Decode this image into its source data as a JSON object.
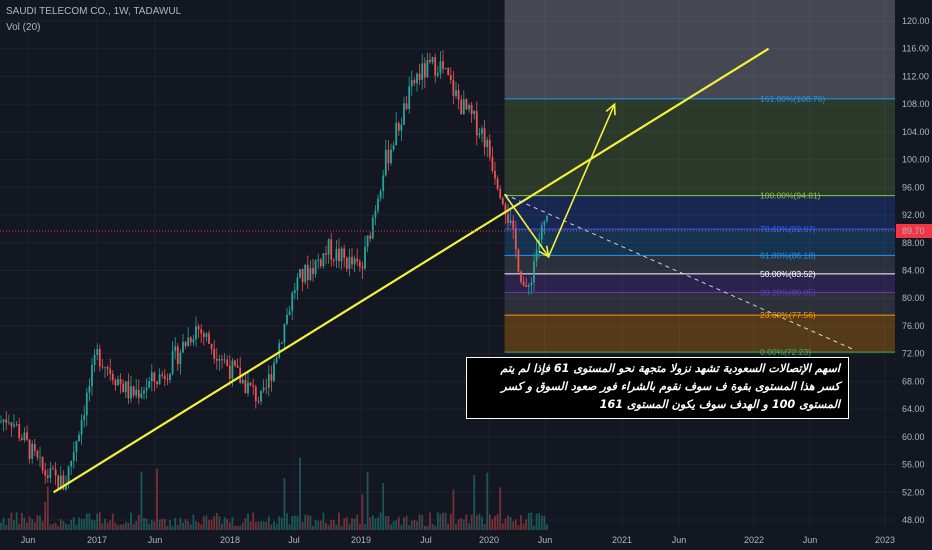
{
  "header": {
    "symbol_line": "SAUDI TELECOM CO., 1W, TADAWUL",
    "indicator": "Vol (20)"
  },
  "colors": {
    "background": "#131722",
    "grid": "#1e222d",
    "up": "#26a69a",
    "down": "#ef5350",
    "trendline": "#f2f23a",
    "price_line": "#f23645",
    "axis_text": "#b2b5be"
  },
  "annotation": {
    "lines": [
      "اسهم الإتصالات السعودية تشهد نزولا متجهة نحو المستوى 61 فإذا لم يتم",
      "كسر هذا المستوى بقوة ف سوف نقوم بالشراء فور صعود السوق و كسر",
      "المستوى 100 و الهدف سوف يكون المستوى 161"
    ]
  },
  "chart_data": {
    "type": "candlestick",
    "title": "SAUDI TELECOM CO., 1W, TADAWUL",
    "xlabel": "",
    "ylabel": "",
    "ylim": [
      47,
      122
    ],
    "x_ticks": [
      "Jun",
      "2017",
      "Jun",
      "2018",
      "Jul",
      "2019",
      "Jul",
      "2020",
      "Jun",
      "2021",
      "Jun",
      "2022",
      "Jun",
      "2023"
    ],
    "y_ticks": [
      48.0,
      52.0,
      56.0,
      60.0,
      64.0,
      68.0,
      72.0,
      76.0,
      80.0,
      84.0,
      88.0,
      92.0,
      96.0,
      100.0,
      104.0,
      108.0,
      112.0,
      116.0,
      120.0
    ],
    "last_price": 89.7,
    "price_path": [
      [
        "2016-01",
        60
      ],
      [
        "2016-04",
        63
      ],
      [
        "2016-07",
        55
      ],
      [
        "2016-09",
        53
      ],
      [
        "2016-12",
        72
      ],
      [
        "2017-03",
        66
      ],
      [
        "2017-06",
        69
      ],
      [
        "2017-09",
        76
      ],
      [
        "2017-12",
        70
      ],
      [
        "2018-03",
        65
      ],
      [
        "2018-06",
        82
      ],
      [
        "2018-09",
        87
      ],
      [
        "2018-12",
        84
      ],
      [
        "2019-02",
        99
      ],
      [
        "2019-05",
        112
      ],
      [
        "2019-07",
        114
      ],
      [
        "2019-09",
        108
      ],
      [
        "2019-11",
        104
      ],
      [
        "2020-01",
        94
      ],
      [
        "2020-03",
        80
      ],
      [
        "2020-04",
        88
      ],
      [
        "2020-05",
        92
      ]
    ],
    "trendline": [
      [
        "2016-08",
        52
      ],
      [
        "2022-01",
        116
      ]
    ],
    "projection": [
      [
        "2020-01",
        95
      ],
      [
        "2020-05",
        86
      ],
      [
        "2020-11",
        108
      ]
    ],
    "fibonacci": {
      "start": "2020-01",
      "levels": [
        {
          "label": "0.00%(72.23)",
          "value": 72.23,
          "color": "#4caf50"
        },
        {
          "label": "23.60%(77.56)",
          "value": 77.56,
          "color": "#ff9800"
        },
        {
          "label": "38.20%(80.85)",
          "value": 80.85,
          "color": "#673ab7"
        },
        {
          "label": "50.00%(83.52)",
          "value": 83.52,
          "color": "#ffffff"
        },
        {
          "label": "61.80%(86.18)",
          "value": 86.18,
          "color": "#2196f3"
        },
        {
          "label": "78.60%(89.97)",
          "value": 89.97,
          "color": "#2962ff"
        },
        {
          "label": "100.00%(94.81)",
          "value": 94.81,
          "color": "#8bc34a"
        },
        {
          "label": "161.80%(108.76)",
          "value": 108.76,
          "color": "#2196f3"
        }
      ],
      "extension_top": 122
    }
  }
}
